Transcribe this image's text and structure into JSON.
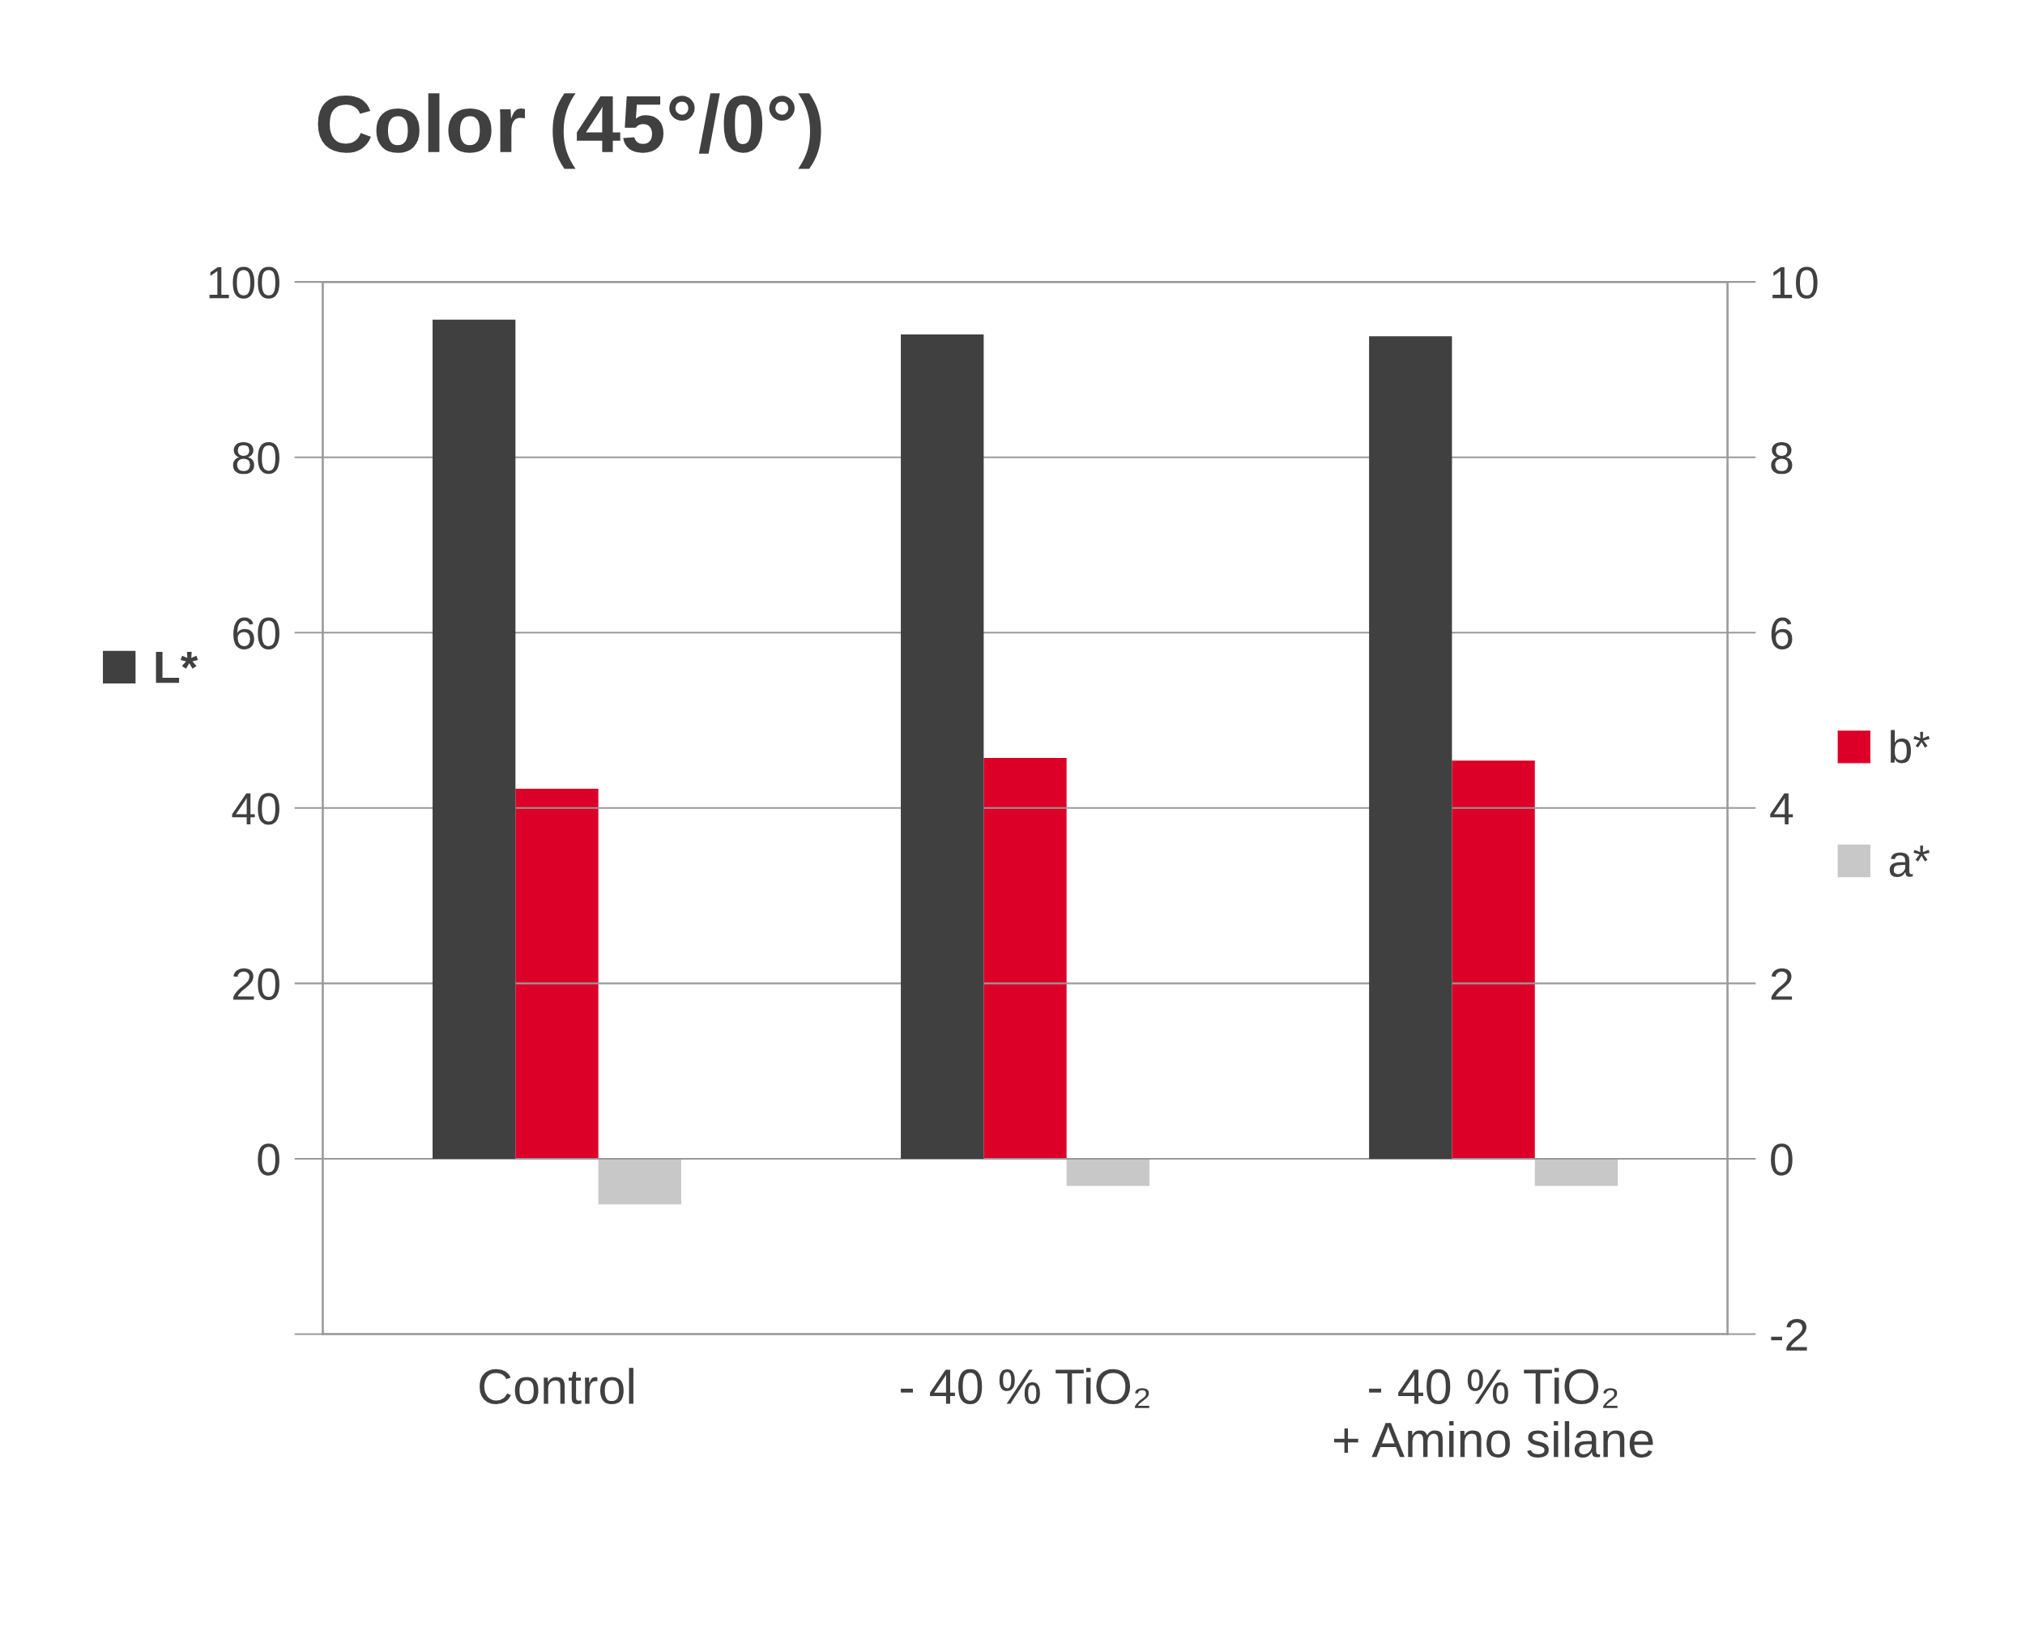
{
  "chart_data": {
    "type": "bar",
    "title": "Color (45°/0°)",
    "categories": [
      "Control",
      "- 40 % TiO₂",
      "- 40 % TiO₂\n+ Amino silane"
    ],
    "series": [
      {
        "name": "L*",
        "color": "#404040",
        "values": [
          95.7,
          94.0,
          93.8
        ]
      },
      {
        "name": "b*",
        "color": "#dc0028",
        "values": [
          4.22,
          4.57,
          4.54
        ],
        "axis": "y2"
      },
      {
        "name": "a*",
        "color": "#c8c8c8",
        "values": [
          -0.52,
          -0.31,
          -0.31
        ],
        "axis": "y2"
      }
    ],
    "ylim": [
      -20,
      100
    ],
    "yticks": [
      {
        "value": -20,
        "label": null
      },
      0,
      20,
      40,
      60,
      80,
      100
    ],
    "y2lim": [
      -2,
      10
    ],
    "y2ticks": [
      -2,
      0,
      2,
      4,
      6,
      8,
      10
    ],
    "grid": "y",
    "legend": "right"
  }
}
